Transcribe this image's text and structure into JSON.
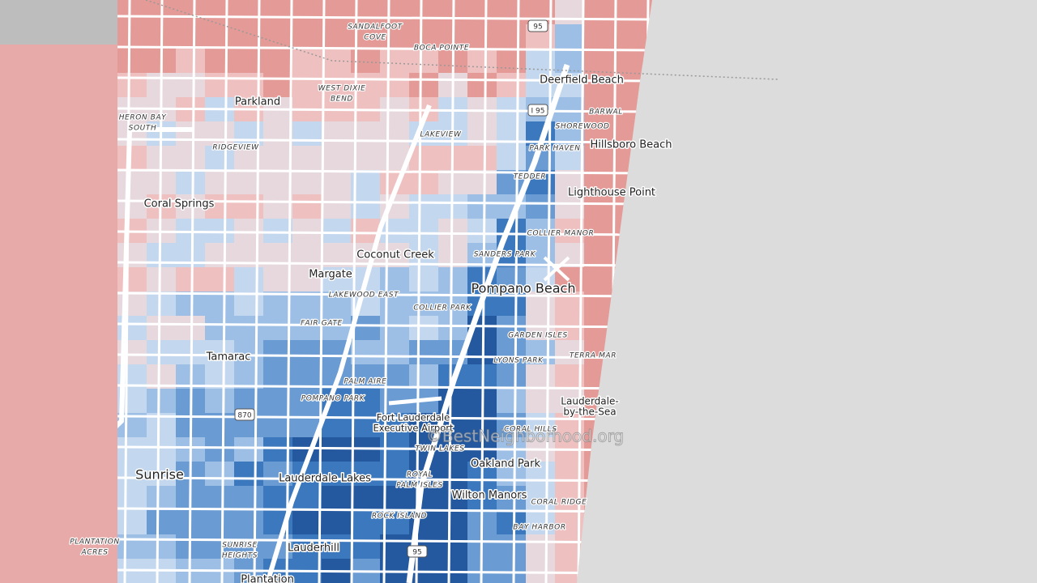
{
  "places": [
    "Deerfield Beach",
    "Parkland",
    "Hillsboro Beach",
    "Lighthouse Point",
    "Coral Springs",
    "Coconut Creek",
    "Margate",
    "Pompano Beach",
    "Tamarac",
    [
      "Fort Lauderdale",
      "Executive Airport"
    ],
    [
      "Lauderdale-",
      "by-the-Sea"
    ],
    "Oakland Park",
    "Sunrise",
    "Lauderdale Lakes",
    "Wilton Manors",
    "Lauderhill",
    "Plantation"
  ],
  "neighborhoods": [
    [
      "SANDALFOOT",
      "COVE"
    ],
    "BOCA POINTE",
    [
      "WEST DIXIE",
      "BEND"
    ],
    [
      "HERON BAY",
      "SOUTH"
    ],
    "BARWAL",
    "SHOREWOOD",
    "LAKEVIEW",
    "RIDGEVIEW",
    "PARK HAVEN",
    "TEDDER",
    "COLLIER MANOR",
    "SANDERS PARK",
    "LAKEWOOD EAST",
    "COLLIER PARK",
    "FAIR GATE",
    "GARDEN ISLES",
    "LYONS PARK",
    "TERRA MAR",
    "PALM AIRE",
    "POMPANO PARK",
    "CORAL HILLS",
    "TWIN LAKES",
    [
      "ROYAL",
      "PALM ISLES"
    ],
    "ROCK ISLAND",
    "CORAL RIDGE",
    "BAY HARBOR",
    [
      "PLANTATION",
      "ACRES"
    ],
    [
      "SUNRISE",
      "HEIGHTS"
    ]
  ],
  "highways": [
    "95",
    "I 95",
    "870",
    "95"
  ],
  "watermark": "©BestNeighborhood.org"
}
